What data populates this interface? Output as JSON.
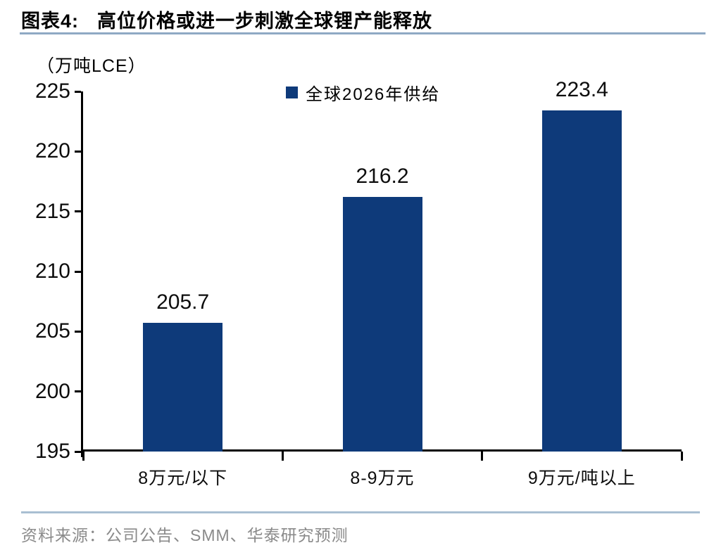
{
  "header": {
    "title_prefix": "图表4:",
    "title": "高位价格或进一步刺激全球锂产能释放"
  },
  "legend": {
    "label": "全球2026年供给"
  },
  "chart_data": {
    "type": "bar",
    "title": "高位价格或进一步刺激全球锂产能释放",
    "categories": [
      "8万元/以下",
      "8-9万元",
      "9万元/吨以上"
    ],
    "series": [
      {
        "name": "全球2026年供给",
        "values": [
          205.7,
          216.2,
          223.4
        ]
      }
    ],
    "data_labels": [
      "205.7",
      "216.2",
      "223.4"
    ],
    "xlabel": "",
    "ylabel": "（万吨LCE）",
    "ylim": [
      195,
      225
    ],
    "ytick_step": 5,
    "ytick_labels": [
      "195",
      "200",
      "205",
      "210",
      "215",
      "220",
      "225"
    ],
    "grid": false,
    "legend_position": "top-center"
  },
  "footer": {
    "source": "资料来源：公司公告、SMM、华泰研究预测"
  },
  "colors": {
    "bar": "#0e3a7a",
    "title_divider": "#8fa9c4",
    "footer_divider": "#a9bfd2",
    "source_text": "#8a8a8a",
    "axis": "#000000"
  }
}
